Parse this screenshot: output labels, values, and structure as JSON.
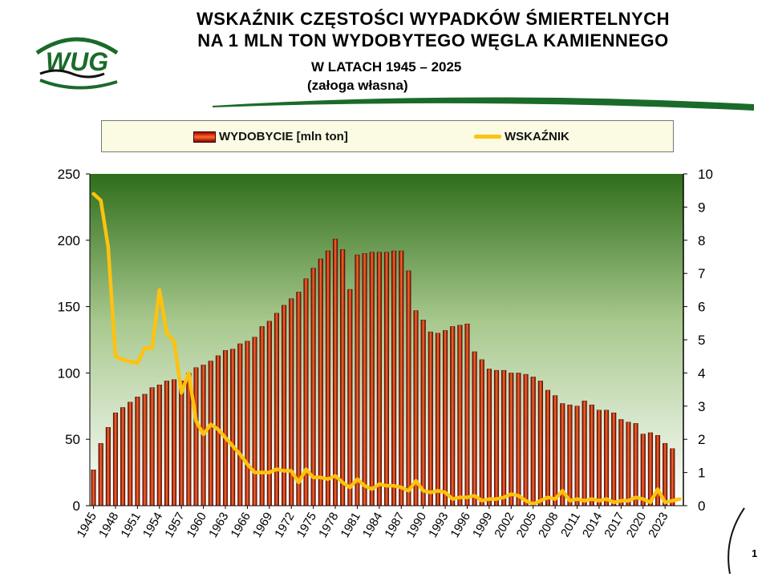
{
  "header": {
    "title_line1": "WSKAŹNIK CZĘSTOŚCI WYPADKÓW ŚMIERTELNYCH",
    "title_line2": "NA 1 MLN TON WYDOBYTEGO WĘGLA KAMIENNEGO",
    "subtitle_years": "W LATACH  1945 – 2025",
    "subtitle_crew": "(załoga własna)"
  },
  "logo": {
    "icon": "wug-logo",
    "text": "WUG",
    "color": "#1a6b2a"
  },
  "legend": {
    "bar_label": "WYDOBYCIE [mln ton]",
    "line_label": "WSKAŹNIK"
  },
  "footer": {
    "page_number": "1"
  },
  "colors": {
    "bar_dark": "#5a0000",
    "bar_light": "#ff6a2a",
    "line": "#ffc20e",
    "plot_top": "#2f6e1a",
    "plot_bottom": "#ffffff"
  },
  "chart_data": {
    "type": "bar",
    "title": "",
    "xlabel": "",
    "ylabel": "",
    "ylim": [
      0,
      250
    ],
    "y2lim": [
      0,
      10
    ],
    "yticks": [
      "0",
      "50",
      "100",
      "150",
      "200",
      "250"
    ],
    "y2ticks": [
      "0",
      "1",
      "2",
      "3",
      "4",
      "5",
      "6",
      "7",
      "8",
      "9",
      "10"
    ],
    "x_tick_labels": [
      "1945",
      "1948",
      "1951",
      "1954",
      "1957",
      "1960",
      "1963",
      "1966",
      "1969",
      "1972",
      "1975",
      "1978",
      "1981",
      "1984",
      "1987",
      "1990",
      "1993",
      "1996",
      "1999",
      "2002",
      "2005",
      "2008",
      "2011",
      "2014",
      "2017",
      "2020",
      "2023"
    ],
    "grid": false,
    "legend_position": "top",
    "categories": [
      1945,
      1946,
      1947,
      1948,
      1949,
      1950,
      1951,
      1952,
      1953,
      1954,
      1955,
      1956,
      1957,
      1958,
      1959,
      1960,
      1961,
      1962,
      1963,
      1964,
      1965,
      1966,
      1967,
      1968,
      1969,
      1970,
      1971,
      1972,
      1973,
      1974,
      1975,
      1976,
      1977,
      1978,
      1979,
      1980,
      1981,
      1982,
      1983,
      1984,
      1985,
      1986,
      1987,
      1988,
      1989,
      1990,
      1991,
      1992,
      1993,
      1994,
      1995,
      1996,
      1997,
      1998,
      1999,
      2000,
      2001,
      2002,
      2003,
      2004,
      2005,
      2006,
      2007,
      2008,
      2009,
      2010,
      2011,
      2012,
      2013,
      2014,
      2015,
      2016,
      2017,
      2018,
      2019,
      2020,
      2021,
      2022,
      2023,
      2024,
      2025
    ],
    "series": [
      {
        "name": "WYDOBYCIE [mln ton]",
        "type": "bar",
        "axis": "left",
        "values": [
          27,
          47,
          59,
          70,
          74,
          78,
          82,
          84,
          89,
          91,
          94,
          95,
          94,
          100,
          104,
          106,
          109,
          113,
          117,
          118,
          122,
          124,
          127,
          135,
          139,
          145,
          151,
          156,
          161,
          171,
          179,
          186,
          192,
          201,
          193,
          163,
          189,
          190,
          191,
          191,
          191,
          192,
          192,
          177,
          147,
          140,
          131,
          130,
          132,
          135,
          136,
          137,
          116,
          110,
          103,
          102,
          102,
          100,
          100,
          99,
          97,
          94,
          87,
          83,
          77,
          76,
          75,
          79,
          76,
          72,
          72,
          70,
          65,
          63,
          62,
          54,
          55,
          53,
          47,
          43,
          0
        ]
      },
      {
        "name": "WSKAŹNIK",
        "type": "line",
        "axis": "right",
        "values": [
          9.4,
          9.2,
          7.8,
          4.5,
          4.4,
          4.35,
          4.3,
          4.75,
          4.75,
          6.5,
          5.2,
          4.95,
          3.4,
          4.0,
          2.55,
          2.15,
          2.45,
          2.3,
          2.05,
          1.8,
          1.55,
          1.25,
          1.0,
          1.0,
          1.0,
          1.1,
          1.05,
          1.05,
          0.7,
          1.1,
          0.85,
          0.85,
          0.8,
          0.9,
          0.7,
          0.55,
          0.8,
          0.6,
          0.5,
          0.65,
          0.6,
          0.6,
          0.55,
          0.45,
          0.75,
          0.45,
          0.4,
          0.45,
          0.4,
          0.2,
          0.25,
          0.25,
          0.3,
          0.15,
          0.2,
          0.2,
          0.25,
          0.35,
          0.3,
          0.15,
          0.05,
          0.15,
          0.25,
          0.2,
          0.45,
          0.15,
          0.2,
          0.15,
          0.2,
          0.15,
          0.2,
          0.1,
          0.15,
          0.15,
          0.25,
          0.2,
          0.1,
          0.5,
          0.1,
          0.15,
          0.2
        ]
      }
    ]
  }
}
